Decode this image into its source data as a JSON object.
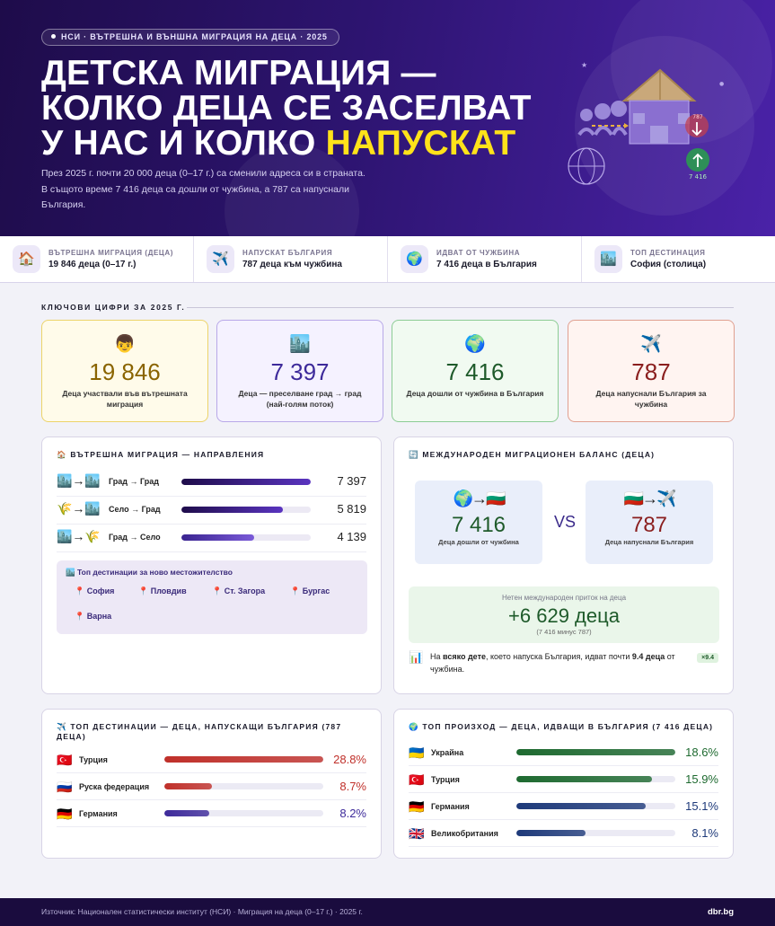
{
  "hero": {
    "tag": "НСИ · ВЪТРЕШНА И ВЪНШНА МИГРАЦИЯ НА ДЕЦА · 2025",
    "title_line1": "ДЕТСКА МИГРАЦИЯ —",
    "title_line2": "КОЛКО ДЕЦА СЕ ЗАСЕЛВАТ",
    "title_line3_a": "У НАС И КОЛКО",
    "title_line3_b": "НАПУСКАТ",
    "lead": "През 2025 г. почти 20 000 деца (0–17 г.) са сменили адреса си в страната. В същото време 7 416 деца са дошли от чужбина, а 787 са напуснали България.",
    "art_out_label": "787",
    "art_in_label": "7 416"
  },
  "strip": [
    {
      "icon": "house-icon",
      "label": "ВЪТРЕШНА МИГРАЦИЯ (ДЕЦА)",
      "value": "19 846 деца (0–17 г.)"
    },
    {
      "icon": "airplane-icon",
      "label": "НАПУСКАТ БЪЛГАРИЯ",
      "value": "787 деца към чужбина"
    },
    {
      "icon": "globe-icon",
      "label": "ИДВАТ ОТ ЧУЖБИНА",
      "value": "7 416 деца в България"
    },
    {
      "icon": "city-icon",
      "label": "ТОП ДЕСТИНАЦИЯ",
      "value": "София (столица)"
    }
  ],
  "key_section_title": "КЛЮЧОВИ ЦИФРИ ЗА 2025 Г.",
  "key_cards": [
    {
      "icon": "child-icon",
      "value": "19 846",
      "desc": "Деца участвали във вътрешната миграция",
      "color": "#8a6400"
    },
    {
      "icon": "city-icon",
      "value": "7 397",
      "desc": "Деца — преселване град → град (най-голям поток)",
      "color": "#3d2a9a"
    },
    {
      "icon": "globe-icon",
      "value": "7 416",
      "desc": "Деца дошли от чужбина в България",
      "color": "#1e5a2a"
    },
    {
      "icon": "airplane-icon",
      "value": "787",
      "desc": "Деца напуснали България за чужбина",
      "color": "#8a1e1e"
    }
  ],
  "internal": {
    "title": "ВЪТРЕШНА МИГРАЦИЯ — НАПРАВЛЕНИЯ",
    "rows": [
      {
        "from": "city-icon",
        "to": "city-icon",
        "label": "Град → Град",
        "value": "7 397",
        "share": 1.0
      },
      {
        "from": "wheat-icon",
        "to": "city-icon",
        "label": "Село → Град",
        "value": "5 819",
        "share": 0.787
      },
      {
        "from": "city-icon",
        "to": "wheat-icon",
        "label": "Град → Село",
        "value": "4 139",
        "share": 0.56
      }
    ],
    "dest_title": "Топ дестинации за ново местожителство",
    "destinations": [
      "София",
      "Пловдив",
      "Ст. Загора",
      "Бургас",
      "Варна"
    ]
  },
  "balance": {
    "title": "МЕЖДУНАРОДЕН МИГРАЦИОНЕН БАЛАНС (ДЕЦА)",
    "in": {
      "value": "7 416",
      "desc": "Деца дошли от чужбина"
    },
    "vs": "VS",
    "out": {
      "value": "787",
      "desc": "Деца напуснали България"
    },
    "net_label": "Нетен международен приток на деца",
    "net_value": "+6 629 деца",
    "net_sub": "(7 416 минус 787)",
    "note_a": "На ",
    "note_b": "всяко дете",
    "note_c": ", което напуска България, идват почти ",
    "note_d": "9.4 деца",
    "note_e": " от чужбина.",
    "badge": "×9.4"
  },
  "outbound": {
    "title": "ТОП ДЕСТИНАЦИИ — ДЕЦА, НАПУСКАЩИ БЪЛГАРИЯ (787 ДЕЦА)",
    "rows": [
      {
        "flag": "turkey-flag-icon",
        "label": "Турция",
        "value": "28.8%",
        "pct": 28.8,
        "color": "#c0302a"
      },
      {
        "flag": "russia-flag-icon",
        "label": "Руска федерация",
        "value": "8.7%",
        "pct": 8.7,
        "color": "#c0302a"
      },
      {
        "flag": "germany-flag-icon",
        "label": "Германия",
        "value": "8.2%",
        "pct": 8.2,
        "color": "#3d2a9a"
      }
    ]
  },
  "inbound": {
    "title": "ТОП ПРОИЗХОД — ДЕЦА, ИДВАЩИ В БЪЛГАРИЯ (7 416 ДЕЦА)",
    "rows": [
      {
        "flag": "ukraine-flag-icon",
        "label": "Украйна",
        "value": "18.6%",
        "pct": 18.6,
        "color": "#1e6a30"
      },
      {
        "flag": "turkey-flag-icon",
        "label": "Турция",
        "value": "15.9%",
        "pct": 15.9,
        "color": "#1e6a30"
      },
      {
        "flag": "germany-flag-icon",
        "label": "Германия",
        "value": "15.1%",
        "pct": 15.1,
        "color": "#1e3a7a"
      },
      {
        "flag": "uk-flag-icon",
        "label": "Великобритания",
        "value": "8.1%",
        "pct": 8.1,
        "color": "#1e3a7a"
      }
    ]
  },
  "footer": {
    "source": "Източник: Национален статистически институт (НСИ) · Миграция на деца (0–17 г.) · 2025 г.",
    "brand": "dbr.bg"
  }
}
